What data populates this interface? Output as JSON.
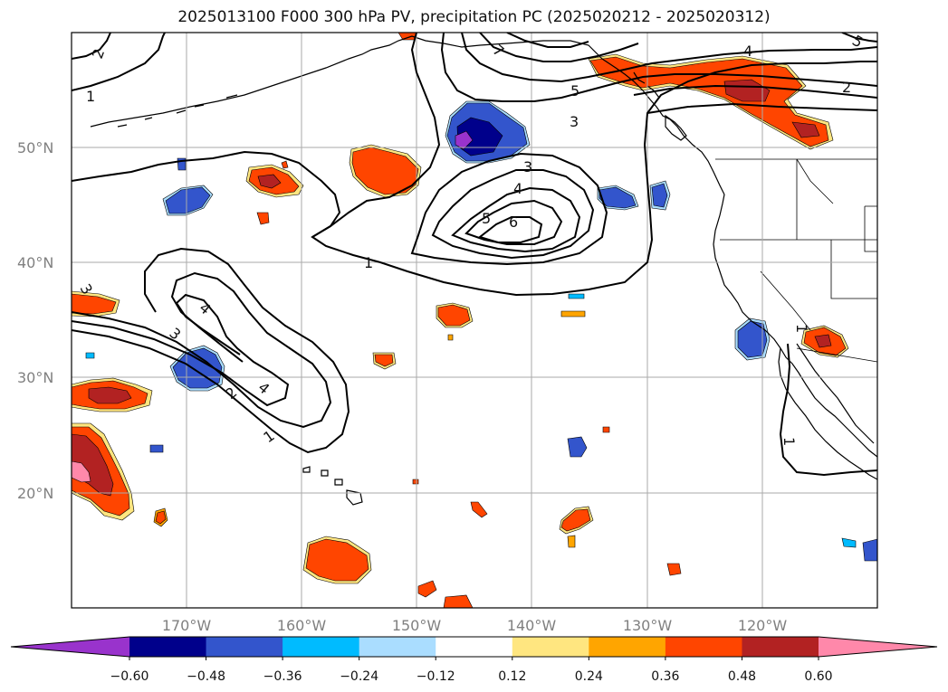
{
  "title": "2025013100 F000 300 hPa PV, precipitation PC (2025020212 - 2025020312)",
  "lat_labels": [
    "50°N",
    "40°N",
    "30°N",
    "20°N"
  ],
  "lon_labels": [
    "170°W",
    "160°W",
    "150°W",
    "140°W",
    "130°W",
    "120°W"
  ],
  "pv_contour_labels": [
    "2",
    "1",
    "7",
    "5",
    "3",
    "4",
    "2",
    "3",
    "4",
    "5",
    "6",
    "1",
    "3",
    "4",
    "3",
    "2",
    "4",
    "1",
    "1",
    "1",
    "5"
  ],
  "colorbar": {
    "tick_labels": [
      "−0.60",
      "−0.48",
      "−0.36",
      "−0.24",
      "−0.12",
      "0.12",
      "0.24",
      "0.36",
      "0.48",
      "0.60"
    ],
    "colors": [
      "#9933cc",
      "#00008b",
      "#3355cc",
      "#00bbff",
      "#aaddff",
      "#ffffff",
      "#ffe680",
      "#ffa500",
      "#ff4500",
      "#b22222",
      "#ff88aa"
    ]
  },
  "chart_data": {
    "type": "heatmap",
    "projection": "map",
    "lon_range": [
      -180,
      -110
    ],
    "lat_range": [
      10,
      60
    ],
    "field_filled": "precipitation PC",
    "field_contour": "300 hPa PV",
    "color_levels": [
      -0.6,
      -0.48,
      -0.36,
      -0.24,
      -0.12,
      0.12,
      0.24,
      0.36,
      0.48,
      0.6
    ],
    "extend": "both",
    "grid": true
  }
}
